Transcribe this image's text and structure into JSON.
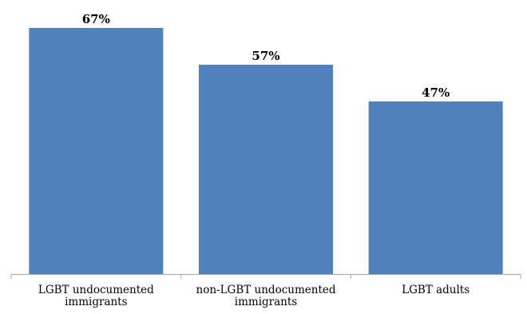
{
  "chart_data": {
    "type": "bar",
    "categories": [
      [
        "LGBT undocumented",
        "immigrants"
      ],
      [
        "non-LGBT undocumented",
        "immigrants"
      ],
      [
        "LGBT adults"
      ]
    ],
    "values": [
      67,
      57,
      47
    ],
    "data_labels": [
      "67%",
      "57%",
      "47%"
    ],
    "title": "",
    "xlabel": "",
    "ylabel": "",
    "ylim": [
      0,
      67
    ],
    "grid": false,
    "legend": "none",
    "bar_color": "#4f81bd",
    "axis_color": "#a6a6a6"
  }
}
